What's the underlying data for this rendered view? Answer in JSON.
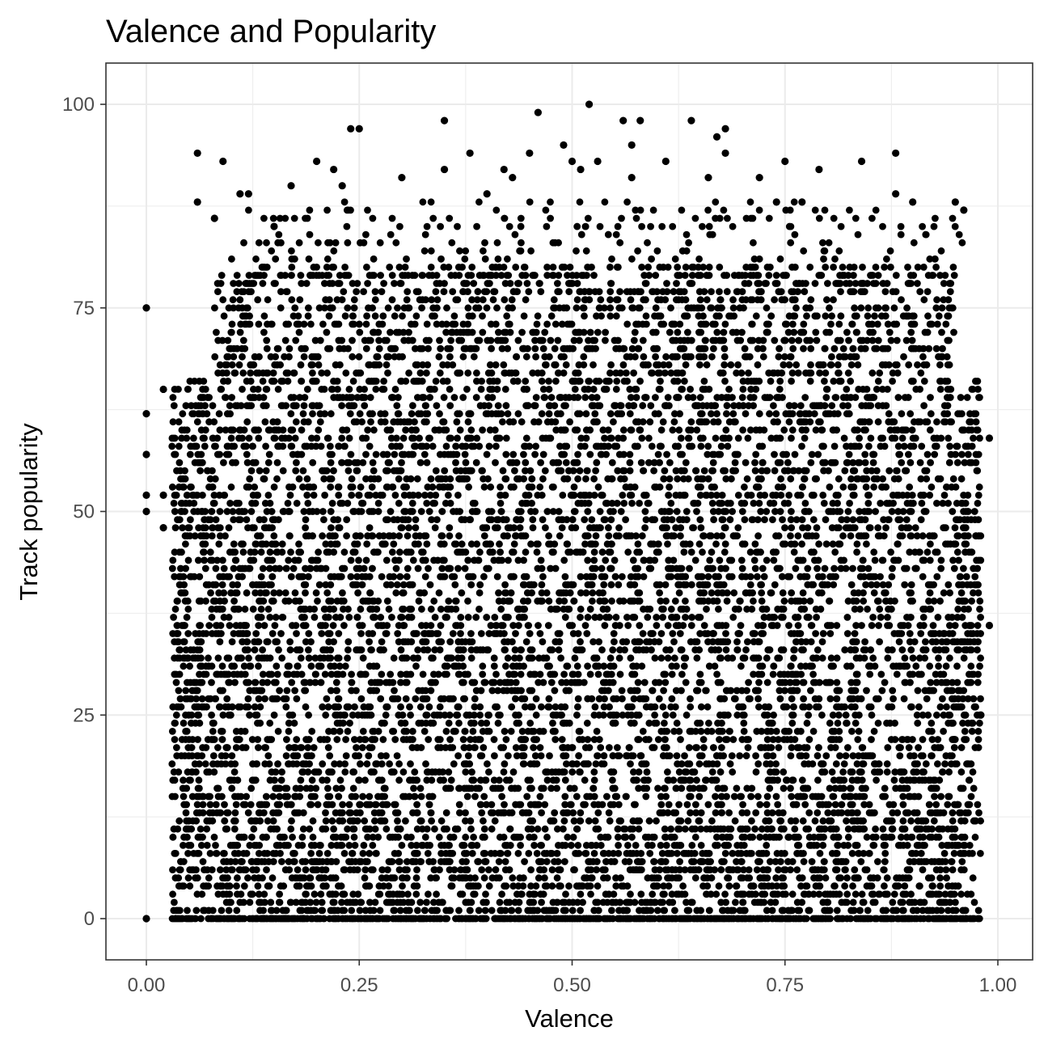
{
  "chart_data": {
    "type": "scatter",
    "title": "Valence and Popularity",
    "xlabel": "Valence",
    "ylabel": "Track popularity",
    "xlim": [
      0.0,
      1.0
    ],
    "ylim": [
      0,
      100
    ],
    "x_ticks": [
      "0.00",
      "0.25",
      "0.50",
      "0.75",
      "1.00"
    ],
    "y_ticks": [
      "0",
      "25",
      "50",
      "75",
      "100"
    ],
    "grid": true,
    "legend": "none",
    "point_color": "#000000",
    "panel_border_color": "#333333",
    "grid_color": "#ebebeb",
    "points": [
      {
        "x": 0.0,
        "y": 75
      },
      {
        "x": 0.0,
        "y": 62
      },
      {
        "x": 0.0,
        "y": 57
      },
      {
        "x": 0.0,
        "y": 52
      },
      {
        "x": 0.0,
        "y": 50
      },
      {
        "x": 0.0,
        "y": 0
      },
      {
        "x": 0.02,
        "y": 48
      },
      {
        "x": 0.02,
        "y": 52
      },
      {
        "x": 0.02,
        "y": 65
      },
      {
        "x": 0.99,
        "y": 59
      },
      {
        "x": 0.99,
        "y": 36
      },
      {
        "x": 0.98,
        "y": 25
      },
      {
        "x": 0.52,
        "y": 100
      },
      {
        "x": 0.46,
        "y": 99
      },
      {
        "x": 0.35,
        "y": 98
      },
      {
        "x": 0.56,
        "y": 98
      },
      {
        "x": 0.58,
        "y": 98
      },
      {
        "x": 0.64,
        "y": 98
      },
      {
        "x": 0.24,
        "y": 97
      },
      {
        "x": 0.25,
        "y": 97
      },
      {
        "x": 0.68,
        "y": 97
      },
      {
        "x": 0.67,
        "y": 96
      },
      {
        "x": 0.49,
        "y": 95
      },
      {
        "x": 0.57,
        "y": 95
      },
      {
        "x": 0.06,
        "y": 94
      },
      {
        "x": 0.38,
        "y": 94
      },
      {
        "x": 0.45,
        "y": 94
      },
      {
        "x": 0.68,
        "y": 94
      },
      {
        "x": 0.88,
        "y": 94
      },
      {
        "x": 0.09,
        "y": 93
      },
      {
        "x": 0.2,
        "y": 93
      },
      {
        "x": 0.5,
        "y": 93
      },
      {
        "x": 0.53,
        "y": 93
      },
      {
        "x": 0.61,
        "y": 93
      },
      {
        "x": 0.75,
        "y": 93
      },
      {
        "x": 0.84,
        "y": 93
      },
      {
        "x": 0.22,
        "y": 92
      },
      {
        "x": 0.35,
        "y": 92
      },
      {
        "x": 0.42,
        "y": 92
      },
      {
        "x": 0.51,
        "y": 92
      },
      {
        "x": 0.79,
        "y": 92
      },
      {
        "x": 0.3,
        "y": 91
      },
      {
        "x": 0.43,
        "y": 91
      },
      {
        "x": 0.57,
        "y": 91
      },
      {
        "x": 0.66,
        "y": 91
      },
      {
        "x": 0.72,
        "y": 91
      },
      {
        "x": 0.23,
        "y": 90
      },
      {
        "x": 0.17,
        "y": 90
      },
      {
        "x": 0.11,
        "y": 89
      },
      {
        "x": 0.12,
        "y": 89
      },
      {
        "x": 0.4,
        "y": 89
      },
      {
        "x": 0.88,
        "y": 89
      },
      {
        "x": 0.06,
        "y": 88
      },
      {
        "x": 0.74,
        "y": 88
      },
      {
        "x": 0.77,
        "y": 88
      },
      {
        "x": 0.95,
        "y": 88
      },
      {
        "x": 0.9,
        "y": 88
      },
      {
        "x": 0.96,
        "y": 87
      },
      {
        "x": 0.08,
        "y": 86
      },
      {
        "x": 0.15,
        "y": 85
      }
    ]
  }
}
